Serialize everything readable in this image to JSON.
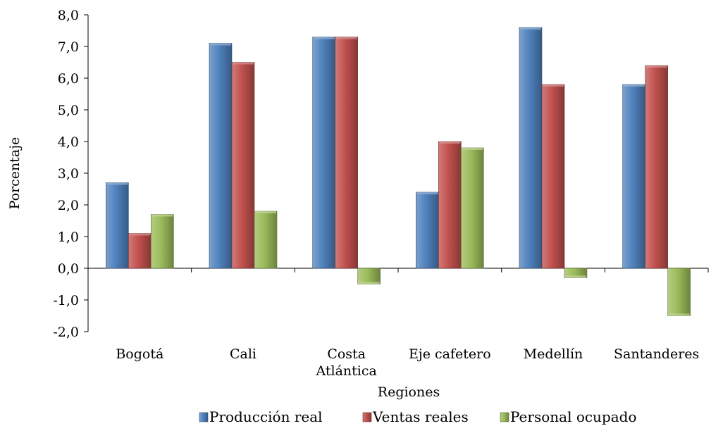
{
  "chart_data": {
    "type": "bar",
    "title": "",
    "xlabel": "Regiones",
    "ylabel": "Porcentaje",
    "ylim": [
      -2.0,
      8.0
    ],
    "ytick_step": 1.0,
    "ytick_labels": [
      "-2,0",
      "-1,0",
      "0,0",
      "1,0",
      "2,0",
      "3,0",
      "4,0",
      "5,0",
      "6,0",
      "7,0",
      "8,0"
    ],
    "categories": [
      [
        "Bogotá"
      ],
      [
        "Cali"
      ],
      [
        "Costa",
        "Atlántica"
      ],
      [
        "Eje cafetero"
      ],
      [
        "Medellín"
      ],
      [
        "Santanderes"
      ]
    ],
    "series": [
      {
        "name": "Producción real",
        "color": "#4f81bd",
        "values": [
          2.7,
          7.1,
          7.3,
          2.4,
          7.6,
          5.8
        ]
      },
      {
        "name": "Ventas reales",
        "color": "#c0504d",
        "values": [
          1.1,
          6.5,
          7.3,
          4.0,
          5.8,
          6.4
        ]
      },
      {
        "name": "Personal ocupado",
        "color": "#9bbb59",
        "values": [
          1.7,
          1.8,
          -0.5,
          3.8,
          -0.3,
          -1.5
        ]
      }
    ],
    "grid": false,
    "legend_position": "bottom",
    "style": "3d-bevel"
  }
}
